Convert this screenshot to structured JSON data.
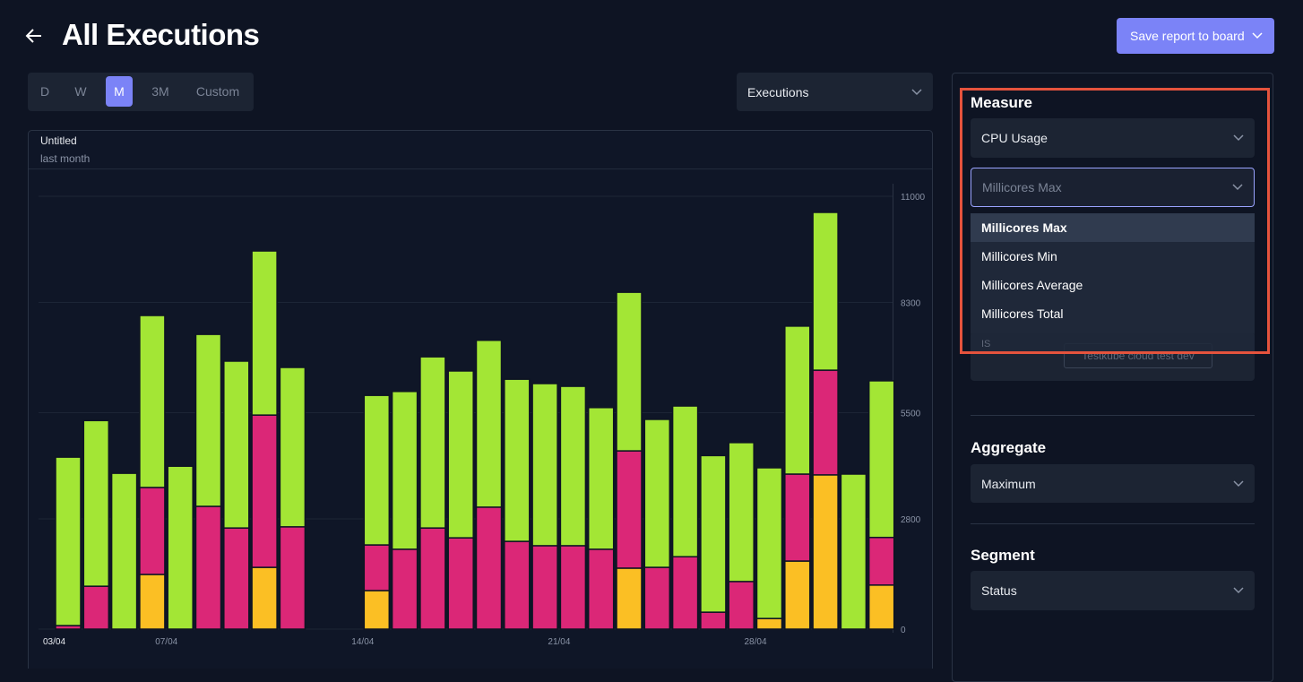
{
  "header": {
    "title": "All Executions",
    "button": "Save report to board"
  },
  "period_tabs": [
    "D",
    "W",
    "M",
    "3M",
    "Custom"
  ],
  "view_select": "Executions",
  "chart_data": {
    "type": "bar",
    "stacked": true,
    "title": "Untitled",
    "subtitle": "last month",
    "categories": [
      "03/04",
      null,
      null,
      null,
      "07/04",
      null,
      null,
      null,
      null,
      null,
      null,
      "14/04",
      null,
      null,
      null,
      null,
      null,
      null,
      "21/04",
      null,
      null,
      null,
      null,
      null,
      null,
      "28/04",
      null,
      null,
      null,
      null
    ],
    "series": [
      {
        "color": "#fbbf24",
        "values": [
          0,
          0,
          0,
          1390,
          0,
          0,
          0,
          1570,
          0,
          null,
          null,
          980,
          0,
          0,
          0,
          0,
          0,
          0,
          0,
          0,
          1550,
          0,
          0,
          0,
          0,
          270,
          1730,
          3920,
          0,
          1120
        ]
      },
      {
        "color": "#db2777",
        "values": [
          90,
          1090,
          0,
          2210,
          0,
          3120,
          2570,
          3870,
          2600,
          null,
          null,
          1160,
          2030,
          2570,
          2320,
          3100,
          2230,
          2120,
          2120,
          2030,
          2980,
          1570,
          1840,
          430,
          1210,
          0,
          2210,
          2660,
          0,
          1210
        ]
      },
      {
        "color": "#a3e635",
        "values": [
          4280,
          4210,
          3960,
          4370,
          4140,
          4370,
          4240,
          4170,
          4050,
          null,
          null,
          3800,
          4010,
          4350,
          4240,
          4240,
          4120,
          4120,
          4050,
          3600,
          4030,
          3760,
          3830,
          3980,
          3530,
          3830,
          3760,
          4010,
          3940,
          3980
        ]
      }
    ],
    "ylim": [
      0,
      11000
    ],
    "yticks": [
      0,
      2800,
      5500,
      8300,
      11000
    ],
    "grid": true
  },
  "sidebar": {
    "measure": {
      "label": "Measure",
      "select": "CPU Usage",
      "placeholder": "Millicores Max",
      "options": [
        "Millicores Max",
        "Millicores Min",
        "Millicores Average",
        "Millicores Total"
      ]
    },
    "hidden": [
      "IS",
      "Testkube cloud test dev"
    ],
    "aggregate": {
      "label": "Aggregate",
      "value": "Maximum"
    },
    "segment": {
      "label": "Segment",
      "value": "Status"
    }
  }
}
